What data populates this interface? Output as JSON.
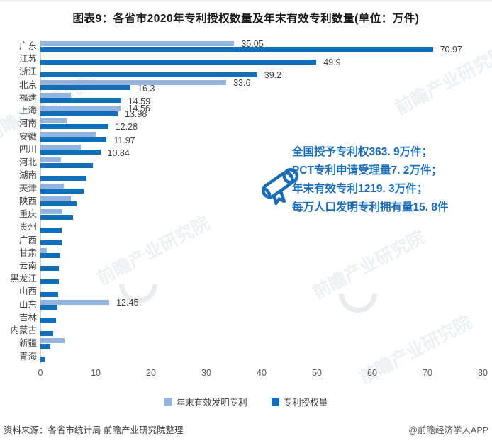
{
  "title": "图表9：各省市2020年专利授权数量及年末有效专利数量(单位：万件)",
  "colors": {
    "valid_series": "#92b4df",
    "granted_series": "#0f6fb8",
    "annotation_blue": "#1b6db8",
    "axis_line": "#c3d4e6",
    "label_text": "#3f3f3f"
  },
  "legend": {
    "valid_label": "年末有效发明专利",
    "granted_label": "专利授权量"
  },
  "annotation": {
    "lines": [
      "全国授予专利权363. 9万件；",
      "PCT专利申请受理量7. 2万件；",
      "年末有效专利1219. 3万件；",
      "每万人口发明专利拥有量15. 8件"
    ]
  },
  "footer": {
    "source": "资料来源：各省市统计局 前瞻产业研究院整理",
    "credit": "@前瞻经济学人APP"
  },
  "watermark": {
    "text": "前瞻产业研究院"
  },
  "chart_data": {
    "type": "bar",
    "orientation": "horizontal",
    "unit": "万件",
    "xlim": [
      0,
      80
    ],
    "x_ticks": [
      0,
      10,
      20,
      30,
      40,
      50,
      60,
      70,
      80
    ],
    "grid": false,
    "legend_position": "bottom",
    "series_names": [
      "年末有效发明专利",
      "专利授权量"
    ],
    "rows": [
      {
        "name": "广东",
        "valid": 35.05,
        "granted": 70.97,
        "valid_label": "35.05",
        "granted_label": "70.97"
      },
      {
        "name": "江苏",
        "valid": null,
        "granted": 49.9,
        "granted_label": "49.9"
      },
      {
        "name": "浙江",
        "valid": null,
        "granted": 39.2,
        "granted_label": "39.2"
      },
      {
        "name": "北京",
        "valid": 33.6,
        "granted": 16.3,
        "valid_label": "33.6",
        "granted_label": "16.3"
      },
      {
        "name": "福建",
        "valid": 5.5,
        "granted": 14.59,
        "granted_label": "14.59"
      },
      {
        "name": "上海",
        "valid": 14.56,
        "granted": 13.98,
        "valid_label": "14.56",
        "granted_label": "13.98"
      },
      {
        "name": "河南",
        "valid": 4.8,
        "granted": 12.28,
        "granted_label": "12.28"
      },
      {
        "name": "安徽",
        "valid": 10.0,
        "granted": 11.97,
        "granted_label": "11.97"
      },
      {
        "name": "四川",
        "valid": 7.3,
        "granted": 10.84,
        "granted_label": "10.84"
      },
      {
        "name": "河北",
        "valid": 3.7,
        "granted": 9.5
      },
      {
        "name": "湖南",
        "valid": null,
        "granted": 8.3
      },
      {
        "name": "天津",
        "valid": 4.2,
        "granted": 7.8
      },
      {
        "name": "陕西",
        "valid": 5.5,
        "granted": 6.5
      },
      {
        "name": "重庆",
        "valid": 4.0,
        "granted": 5.9
      },
      {
        "name": "贵州",
        "valid": null,
        "granted": 3.8
      },
      {
        "name": "广西",
        "valid": null,
        "granted": 3.8
      },
      {
        "name": "甘肃",
        "valid": 1.2,
        "granted": 3.6
      },
      {
        "name": "云南",
        "valid": null,
        "granted": 3.3
      },
      {
        "name": "黑龙江",
        "valid": null,
        "granted": 3.3
      },
      {
        "name": "山西",
        "valid": null,
        "granted": 3.2
      },
      {
        "name": "山东",
        "valid": 12.45,
        "granted": 3.1,
        "valid_label": "12.45"
      },
      {
        "name": "吉林",
        "valid": null,
        "granted": 2.8
      },
      {
        "name": "内蒙古",
        "valid": null,
        "granted": 2.3
      },
      {
        "name": "新疆",
        "valid": 4.4,
        "granted": 1.8
      },
      {
        "name": "青海",
        "valid": null,
        "granted": 0.9
      }
    ]
  }
}
